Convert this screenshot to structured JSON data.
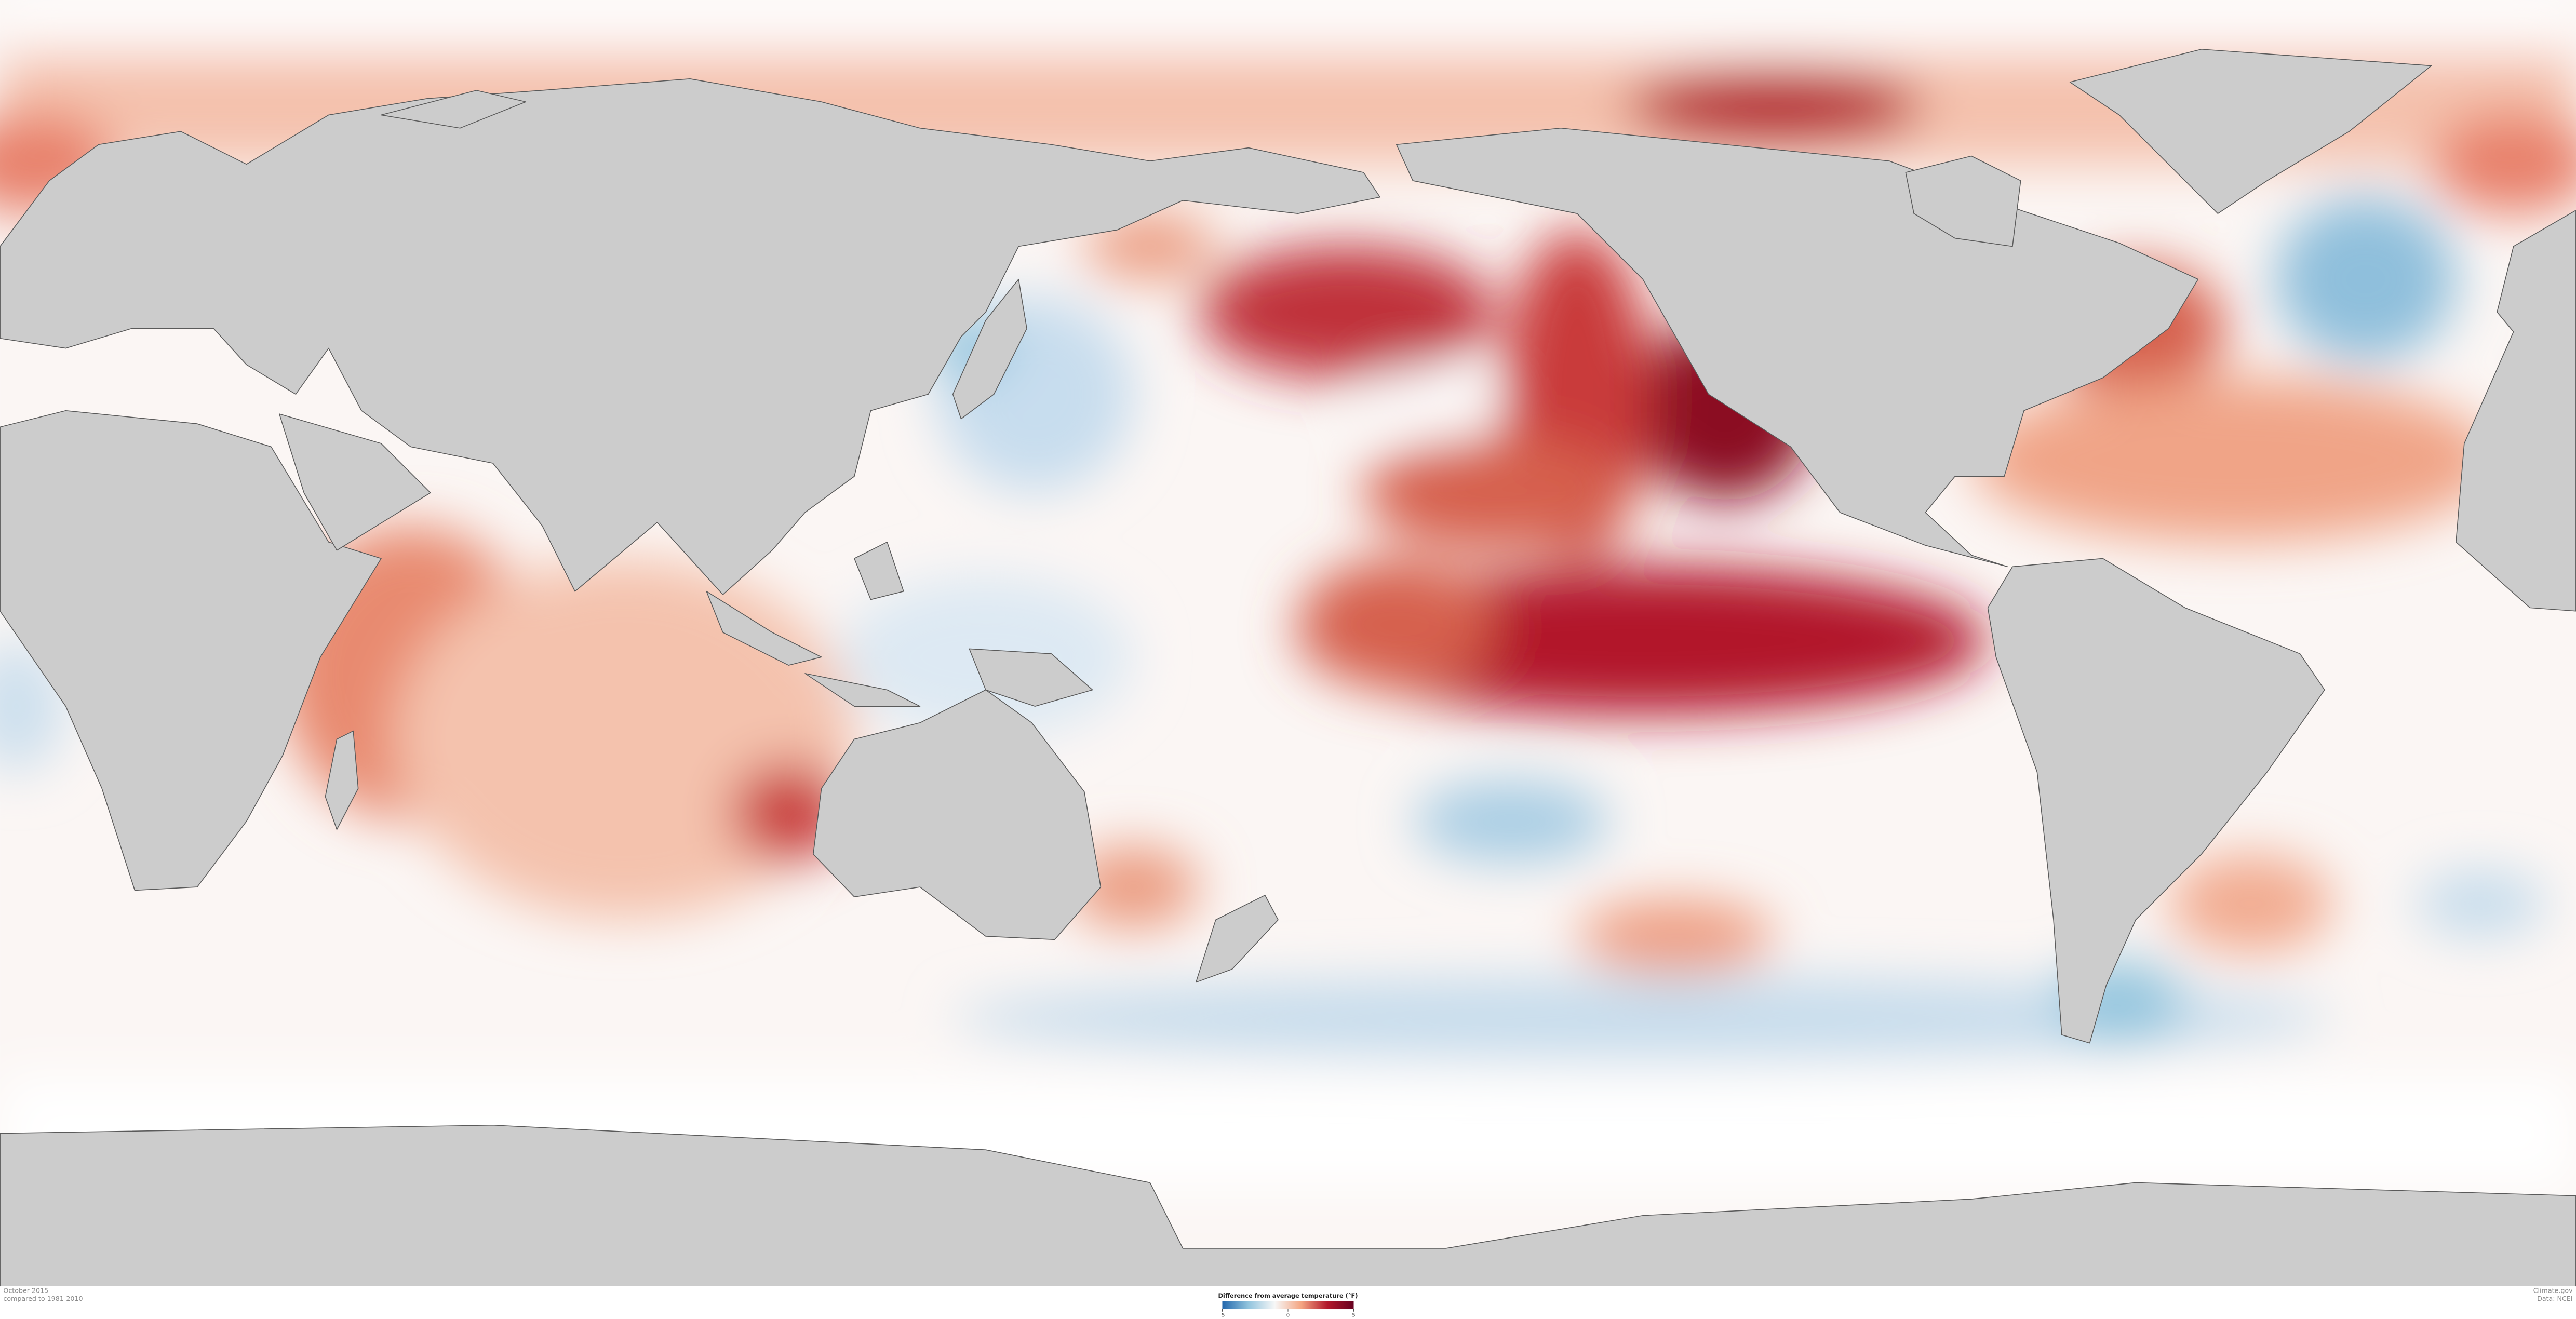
{
  "legend": {
    "title": "Difference from average temperature (°F)",
    "lim": [
      -5,
      5
    ],
    "ticks": [
      -5,
      0,
      5
    ],
    "colors": [
      "#2166ac",
      "#92c5de",
      "#f7f7f7",
      "#f4a582",
      "#b2182b",
      "#67001f"
    ]
  },
  "footer": {
    "left": [
      "October 2015",
      "compared to 1981-2010"
    ],
    "right": [
      "Climate.gov",
      "Data: NCEI"
    ]
  }
}
